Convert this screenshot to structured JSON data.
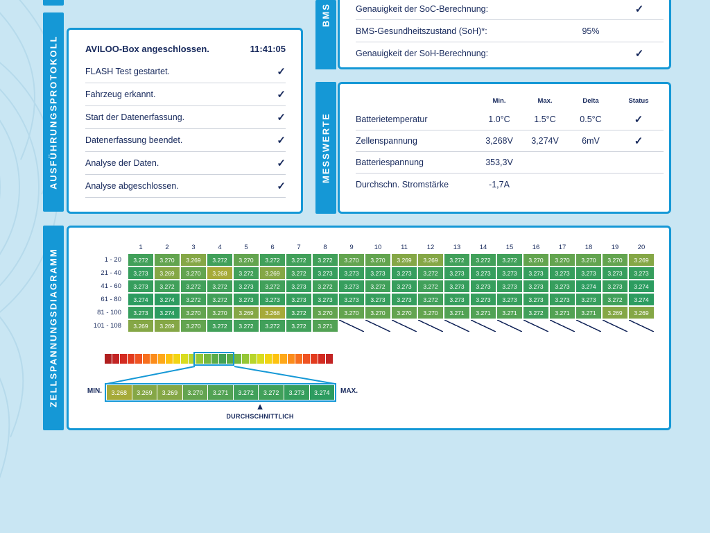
{
  "colors": {
    "accent_blue": "#1598d6",
    "navy": "#17295c",
    "background": "#c9e6f3"
  },
  "icons": {
    "check": "✓",
    "average_marker": "▲"
  },
  "protocol": {
    "title": "AUSFÜHRUNGSPROTOKOLL",
    "header": {
      "label": "AVILOO-Box angeschlossen.",
      "time": "11:41:05"
    },
    "items": [
      "FLASH Test gestartet.",
      "Fahrzeug erkannt.",
      "Start der Datenerfassung.",
      "Datenerfassung beendet.",
      "Analyse der Daten.",
      "Analyse abgeschlossen."
    ]
  },
  "bms": {
    "title": "BMS",
    "rows": [
      {
        "label": "Genauigkeit der SoC-Berechnung:",
        "value": "",
        "checked": true
      },
      {
        "label": "BMS-Gesundheitszustand (SoH)*:",
        "value": "95%",
        "checked": false
      },
      {
        "label": "Genauigkeit der SoH-Berechnung:",
        "value": "",
        "checked": true
      }
    ]
  },
  "messwerte": {
    "title": "MESSWERTE",
    "columns": [
      "Min.",
      "Max.",
      "Delta",
      "Status"
    ],
    "rows": [
      {
        "label": "Batterietemperatur",
        "min": "1.0°C",
        "max": "1.5°C",
        "delta": "0.5°C",
        "checked": true
      },
      {
        "label": "Zellenspannung",
        "min": "3,268V",
        "max": "3,274V",
        "delta": "6mV",
        "checked": true
      },
      {
        "label": "Batteriespannung",
        "min": "353,3V",
        "max": "",
        "delta": "",
        "checked": false
      },
      {
        "label": "Durchschn. Stromstärke",
        "min": "-1,7A",
        "max": "",
        "delta": "",
        "checked": false
      }
    ]
  },
  "zellspannung": {
    "title": "ZELLSPANNUNGSDIAGRAMM",
    "column_headers": [
      "1",
      "2",
      "3",
      "4",
      "5",
      "6",
      "7",
      "8",
      "9",
      "10",
      "11",
      "12",
      "13",
      "14",
      "15",
      "16",
      "17",
      "18",
      "19",
      "20"
    ],
    "rows": [
      {
        "label": "1 - 20",
        "cells": [
          "3.272",
          "3.270",
          "3.269",
          "3.272",
          "3.270",
          "3.272",
          "3.272",
          "3.272",
          "3.270",
          "3.270",
          "3.269",
          "3.269",
          "3.272",
          "3.272",
          "3.272",
          "3.270",
          "3.270",
          "3.270",
          "3.270",
          "3.269"
        ]
      },
      {
        "label": "21 - 40",
        "cells": [
          "3.273",
          "3.269",
          "3.270",
          "3.268",
          "3.272",
          "3.269",
          "3.272",
          "3.273",
          "3.273",
          "3.273",
          "3.273",
          "3.272",
          "3.273",
          "3.273",
          "3.273",
          "3.273",
          "3.273",
          "3.273",
          "3.273",
          "3.273"
        ]
      },
      {
        "label": "41 - 60",
        "cells": [
          "3.273",
          "3.272",
          "3.272",
          "3.272",
          "3.273",
          "3.272",
          "3.273",
          "3.272",
          "3.273",
          "3.272",
          "3.273",
          "3.272",
          "3.273",
          "3.273",
          "3.273",
          "3.273",
          "3.273",
          "3.274",
          "3.273",
          "3.274"
        ]
      },
      {
        "label": "61 - 80",
        "cells": [
          "3.274",
          "3.274",
          "3.272",
          "3.272",
          "3.273",
          "3.273",
          "3.273",
          "3.273",
          "3.273",
          "3.273",
          "3.273",
          "3.272",
          "3.273",
          "3.273",
          "3.273",
          "3.273",
          "3.273",
          "3.273",
          "3.272",
          "3.274"
        ]
      },
      {
        "label": "81 - 100",
        "cells": [
          "3.273",
          "3.274",
          "3.270",
          "3.270",
          "3.269",
          "3.268",
          "3.272",
          "3.270",
          "3.270",
          "3.270",
          "3.270",
          "3.270",
          "3.271",
          "3.271",
          "3.271",
          "3.272",
          "3.271",
          "3.271",
          "3.269",
          "3.269"
        ]
      },
      {
        "label": "101 - 108",
        "cells": [
          "3.269",
          "3.269",
          "3.270",
          "3.272",
          "3.272",
          "3.272",
          "3.272",
          "3.271",
          null,
          null,
          null,
          null,
          null,
          null,
          null,
          null,
          null,
          null,
          null,
          null
        ]
      }
    ],
    "value_colors": {
      "3.268": "#a6aa39",
      "3.269": "#85a746",
      "3.270": "#63a44f",
      "3.271": "#52a254",
      "3.272": "#41a05a",
      "3.273": "#369e5d",
      "3.274": "#2c9c60"
    },
    "legend_colors": [
      "#b01f1f",
      "#c22424",
      "#d32b21",
      "#e23b1e",
      "#ef5322",
      "#f76f1e",
      "#fb8c1b",
      "#fea819",
      "#fdc20f",
      "#f2d413",
      "#d9dc1f",
      "#b8d52b",
      "#95c736",
      "#74b83f",
      "#58ab48",
      "#42a156",
      "#58ab48",
      "#74b83f",
      "#95c736",
      "#b8d52b",
      "#d9dc1f",
      "#f2d413",
      "#fdc20f",
      "#fea819",
      "#fb8c1b",
      "#f76f1e",
      "#ef5322",
      "#e23b1e",
      "#d32b21",
      "#c22424"
    ],
    "zoom": {
      "min_label": "MIN.",
      "max_label": "MAX.",
      "values": [
        "3.268",
        "3.269",
        "3.269",
        "3.270",
        "3.271",
        "3.272",
        "3.272",
        "3.273",
        "3.274"
      ],
      "avg_label": "DURCHSCHNITTLICH"
    }
  }
}
